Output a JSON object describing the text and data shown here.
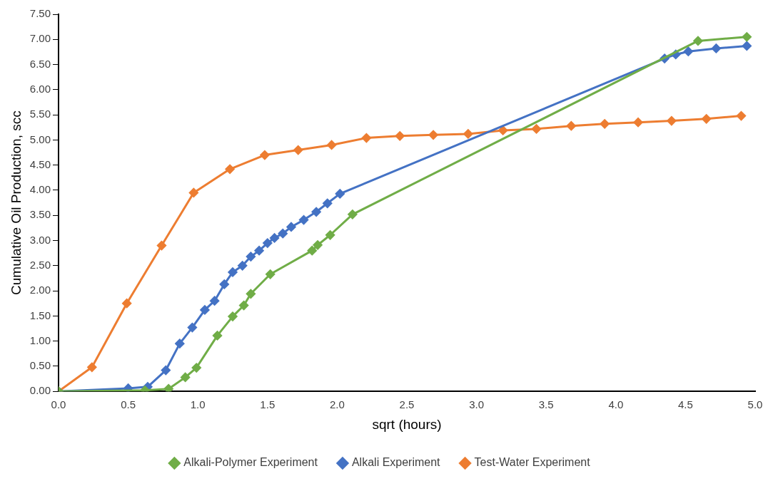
{
  "chart_data": {
    "type": "line",
    "xlabel": "sqrt (hours)",
    "ylabel": "Cumulative Oil Production, scc",
    "xlim": [
      0,
      5
    ],
    "ylim": [
      0,
      7.5
    ],
    "xticks": [
      {
        "value": 0,
        "label": "0.0"
      },
      {
        "value": 0.5,
        "label": "0.5"
      },
      {
        "value": 1,
        "label": "1.0"
      },
      {
        "value": 1.5,
        "label": "1.5"
      },
      {
        "value": 2,
        "label": "2.0"
      },
      {
        "value": 2.5,
        "label": "2.5"
      },
      {
        "value": 3,
        "label": "3.0"
      },
      {
        "value": 3.5,
        "label": "3.5"
      },
      {
        "value": 4,
        "label": "4.0"
      },
      {
        "value": 4.5,
        "label": "4.5"
      },
      {
        "value": 5,
        "label": "5.0"
      }
    ],
    "yticks": [
      {
        "value": 0,
        "label": "0.00"
      },
      {
        "value": 0.5,
        "label": "0.50"
      },
      {
        "value": 1,
        "label": "1.00"
      },
      {
        "value": 1.5,
        "label": "1.50"
      },
      {
        "value": 2,
        "label": "2.00"
      },
      {
        "value": 2.5,
        "label": "2.50"
      },
      {
        "value": 3,
        "label": "3.00"
      },
      {
        "value": 3.5,
        "label": "3.50"
      },
      {
        "value": 4,
        "label": "4.00"
      },
      {
        "value": 4.5,
        "label": "4.50"
      },
      {
        "value": 5,
        "label": "5.00"
      },
      {
        "value": 5.5,
        "label": "5.50"
      },
      {
        "value": 6,
        "label": "6.00"
      },
      {
        "value": 6.5,
        "label": "6.50"
      },
      {
        "value": 7,
        "label": "7.00"
      },
      {
        "value": 7.5,
        "label": "7.50"
      }
    ],
    "grid": false,
    "legend": "bottom",
    "marker": "diamond",
    "line_style": "solid",
    "series": [
      {
        "name": "Alkali-Polymer Experiment",
        "color": "#70ad47",
        "x": [
          0,
          0.62,
          0.79,
          0.91,
          0.99,
          1.14,
          1.25,
          1.33,
          1.38,
          1.52,
          1.82,
          1.86,
          1.95,
          2.11,
          4.59,
          4.94
        ],
        "values": [
          0,
          0.02,
          0.05,
          0.28,
          0.47,
          1.11,
          1.49,
          1.71,
          1.94,
          2.33,
          2.8,
          2.91,
          3.11,
          3.52,
          6.97,
          7.05
        ]
      },
      {
        "name": "Alkali Experiment",
        "color": "#4472c4",
        "x": [
          0,
          0.5,
          0.64,
          0.77,
          0.87,
          0.96,
          1.05,
          1.12,
          1.19,
          1.25,
          1.32,
          1.38,
          1.44,
          1.5,
          1.55,
          1.61,
          1.67,
          1.76,
          1.85,
          1.93,
          2.02,
          4.35,
          4.43,
          4.52,
          4.72,
          4.94
        ],
        "values": [
          0,
          0.06,
          0.09,
          0.42,
          0.95,
          1.27,
          1.62,
          1.8,
          2.13,
          2.37,
          2.5,
          2.68,
          2.8,
          2.95,
          3.05,
          3.14,
          3.27,
          3.41,
          3.57,
          3.74,
          3.93,
          6.62,
          6.7,
          6.76,
          6.82,
          6.87
        ]
      },
      {
        "name": "Test-Water Experiment",
        "color": "#ed7d31",
        "x": [
          0,
          0.24,
          0.49,
          0.74,
          0.97,
          1.23,
          1.48,
          1.72,
          1.96,
          2.21,
          2.45,
          2.69,
          2.94,
          3.19,
          3.43,
          3.68,
          3.92,
          4.16,
          4.4,
          4.65,
          4.9
        ],
        "values": [
          0,
          0.48,
          1.75,
          2.9,
          3.95,
          4.42,
          4.7,
          4.8,
          4.9,
          5.04,
          5.08,
          5.1,
          5.12,
          5.19,
          5.22,
          5.28,
          5.32,
          5.35,
          5.38,
          5.42,
          5.48
        ]
      }
    ]
  }
}
